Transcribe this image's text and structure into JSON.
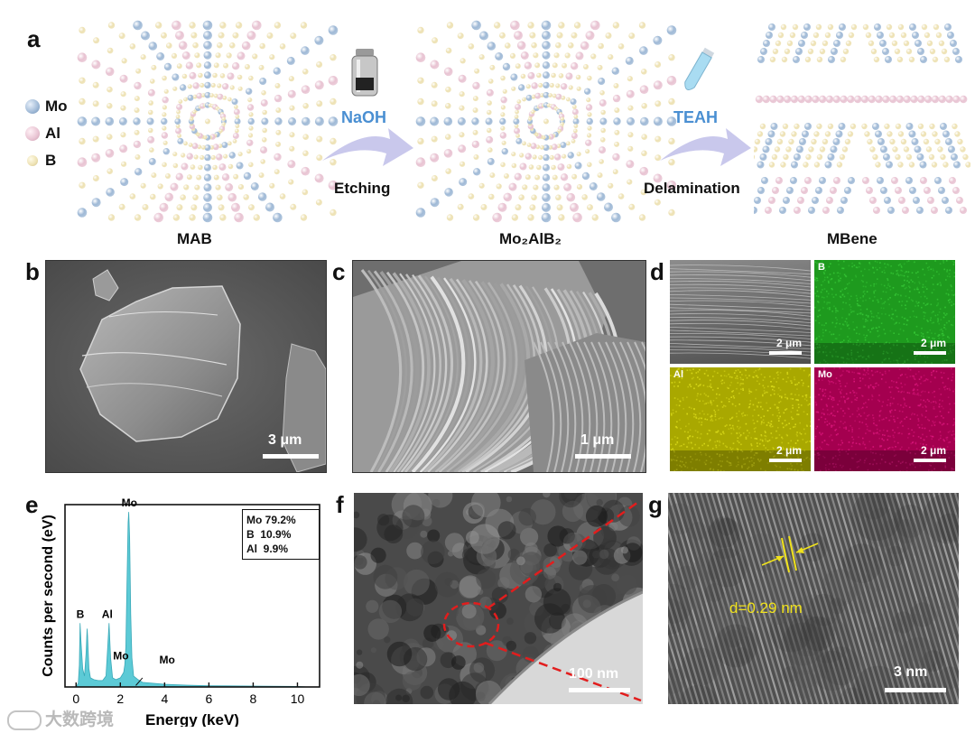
{
  "figure": {
    "panel_labels": [
      "a",
      "b",
      "c",
      "d",
      "e",
      "f",
      "g"
    ]
  },
  "schematic": {
    "legend": [
      {
        "label": "Mo",
        "color": "#9fb9d6"
      },
      {
        "label": "Al",
        "color": "#e8c3d2"
      },
      {
        "label": "B",
        "color": "#ede1b2"
      }
    ],
    "structures": [
      "MAB",
      "Mo₂AlB₂",
      "MBene"
    ],
    "step1": {
      "reagent": "NaOH",
      "process": "Etching"
    },
    "step2": {
      "reagent": "TEAH",
      "process": "Delamination"
    }
  },
  "sem_b": {
    "scale_bar": "3 μm"
  },
  "sem_c": {
    "scale_bar": "1 μm"
  },
  "eds_maps": {
    "tiles": [
      {
        "label": "",
        "scale_bar": "2 μm",
        "color": "#6e6e6e"
      },
      {
        "label": "B",
        "scale_bar": "2 μm",
        "color": "#1fa51f"
      },
      {
        "label": "Al",
        "scale_bar": "2 μm",
        "color": "#b8b800"
      },
      {
        "label": "Mo",
        "scale_bar": "2 μm",
        "color": "#b0005a"
      }
    ]
  },
  "chart_data": {
    "type": "area",
    "xlabel": "Energy (keV)",
    "ylabel": "Counts per second (eV)",
    "xlim": [
      -0.5,
      11
    ],
    "xticks": [
      0,
      2,
      4,
      6,
      8,
      10
    ],
    "ylim": [
      0,
      100
    ],
    "color": "#5ccad6",
    "series": [
      {
        "x": [
          -0.2,
          0.0,
          0.1,
          0.15,
          0.18,
          0.22,
          0.3,
          0.38,
          0.45,
          0.5,
          0.52,
          0.58,
          0.65,
          0.8,
          1.0,
          1.2,
          1.35,
          1.42,
          1.49,
          1.56,
          1.65,
          1.8,
          2.0,
          2.15,
          2.2,
          2.25,
          2.3,
          2.35,
          2.38,
          2.42,
          2.47,
          2.52,
          2.6,
          2.8,
          3.0,
          4.0,
          5.0,
          6.0,
          8.0,
          10.0,
          10.5
        ],
        "y": [
          0,
          0,
          2,
          12,
          35,
          25,
          10,
          6,
          18,
          32,
          28,
          10,
          5,
          4,
          3.5,
          3.5,
          6,
          20,
          35,
          16,
          5,
          4,
          5,
          8,
          12,
          22,
          58,
          90,
          96,
          82,
          40,
          16,
          6,
          4,
          2.5,
          1.5,
          1,
          0.7,
          0.5,
          0.3,
          0
        ]
      }
    ],
    "annotations": [
      {
        "text": "B",
        "x": 0.18,
        "y": 35
      },
      {
        "text": "Al",
        "x": 1.49,
        "y": 35
      },
      {
        "text": "Mo",
        "x": 2.38,
        "y": 96
      },
      {
        "text": "Mo",
        "x": 2.0,
        "y": 13
      },
      {
        "text": "Mo",
        "x": 3.6,
        "y": 6
      }
    ],
    "composition_table": [
      {
        "element": "Mo",
        "value": "79.2%"
      },
      {
        "element": "B",
        "value": "10.9%"
      },
      {
        "element": "Al",
        "value": "9.9%"
      }
    ]
  },
  "tem_f": {
    "scale_bar": "100 nm"
  },
  "hrtem_g": {
    "d_spacing": "d=0.29 nm",
    "scale_bar": "3 nm"
  },
  "watermark": {
    "text": "大数跨境"
  }
}
